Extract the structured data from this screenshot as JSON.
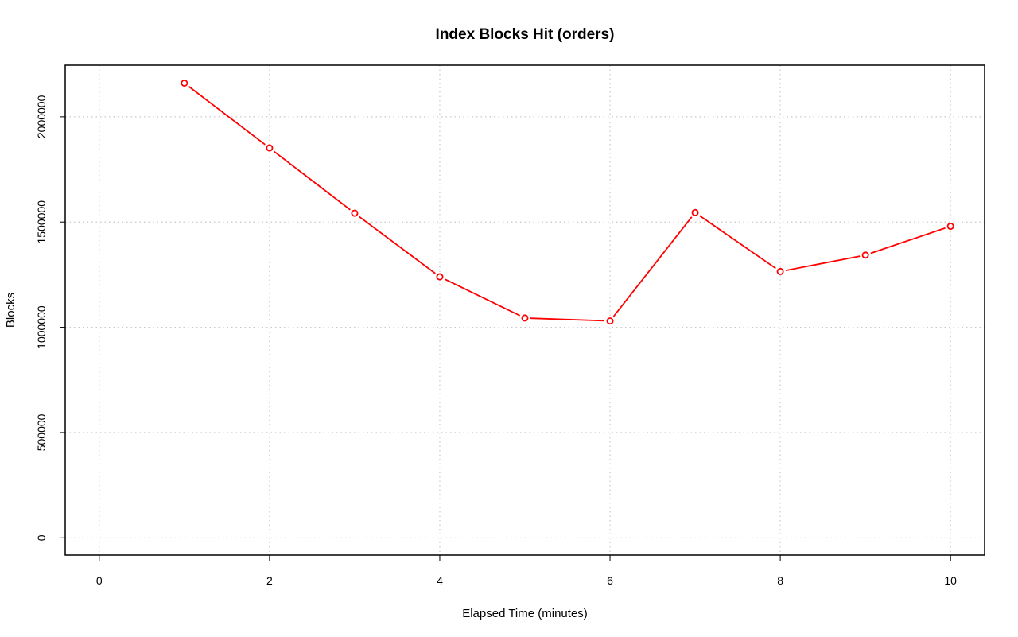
{
  "chart_data": {
    "type": "line",
    "title": "Index Blocks Hit (orders)",
    "xlabel": "Elapsed Time (minutes)",
    "ylabel": "Blocks",
    "x_ticks": [
      "0",
      "2",
      "4",
      "6",
      "8",
      "10"
    ],
    "y_ticks": [
      "0",
      "500000",
      "1000000",
      "1500000",
      "2000000"
    ],
    "xlim": [
      -0.4,
      10.4
    ],
    "ylim": [
      -82000,
      2245000
    ],
    "grid": true,
    "legend": "none",
    "series": [
      {
        "color": "#ff0000",
        "marker": "open-circle",
        "x": [
          1,
          2,
          3,
          4,
          5,
          6,
          7,
          8,
          9,
          10
        ],
        "y": [
          2160000,
          1852000,
          1542000,
          1240000,
          1044000,
          1030000,
          1545000,
          1265000,
          1343000,
          1480000
        ]
      }
    ]
  }
}
